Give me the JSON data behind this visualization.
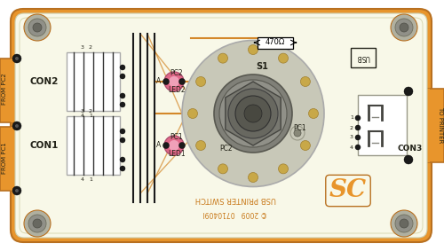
{
  "bg_outer": "#ffffff",
  "board_orange": "#e8952c",
  "board_dark_edge": "#b87020",
  "board_inner_line": "#d4aa60",
  "white_bg": "#f8f8e8",
  "trace_orange": "#d4882a",
  "grey_ellipse": "#c8c8b8",
  "switch_outer": "#888878",
  "switch_mid": "#707068",
  "switch_inner": "#585850",
  "switch_dark": "#3a3a34",
  "pad_color": "#c8a848",
  "pad_edge": "#a08030",
  "screw_outer": "#b0b0a0",
  "screw_mid": "#909088",
  "screw_inner": "#686860",
  "black_dot": "#1a1a1a",
  "led_pink": "#e06888",
  "led_bright": "#f0a0b8",
  "text_dark": "#222218",
  "text_orange": "#c87818",
  "res_box_color": "#ffffff",
  "resistor_label": "470Ω",
  "text_bottom1": "USB PRINTER SWITCH",
  "text_bottom2": "© 2009   0710409l",
  "con1_label": "CON1",
  "con2_label": "CON2",
  "con3_label": "CON3",
  "from_pc1": "FROM PC1",
  "from_pc2": "FROM PC2",
  "to_printer": "TO PRINTER",
  "led1_label": "LED1",
  "led2_label": "LED2",
  "s1_label": "S1",
  "pc1_label": "PC1",
  "pc2_label": "PC2",
  "sc_label": "SC",
  "a_label": "A"
}
